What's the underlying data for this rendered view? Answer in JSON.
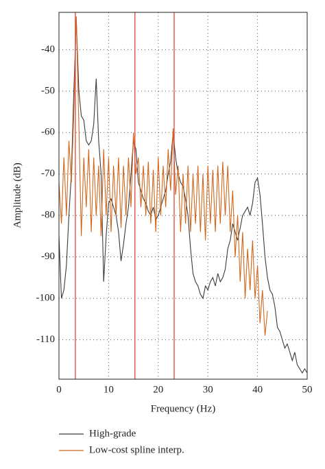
{
  "chart_data": {
    "type": "line",
    "xlabel": "Frequency (Hz)",
    "ylabel": "Amplitude (dB)",
    "xlim": [
      0,
      50
    ],
    "ylim": [
      -119.5,
      -31
    ],
    "xticks": [
      0,
      10,
      20,
      30,
      40,
      50
    ],
    "yticks": [
      -40,
      -50,
      -60,
      -70,
      -80,
      -90,
      -100,
      -110
    ],
    "grid": true,
    "vlines": [
      3.3,
      15.3,
      23.2
    ],
    "vline_color": "#e0443a",
    "legend": "bottom",
    "series": [
      {
        "name": "High-grade",
        "color": "#3a3a3a",
        "x": [
          0,
          0.5,
          1,
          1.5,
          2,
          2.5,
          3,
          3.5,
          4,
          4.5,
          5,
          5.5,
          6,
          6.5,
          7,
          7.5,
          8,
          8.5,
          9,
          9.5,
          10,
          10.5,
          11,
          11.5,
          12,
          12.5,
          13,
          13.5,
          14,
          14.5,
          15,
          15.5,
          16,
          16.5,
          17,
          17.5,
          18,
          18.5,
          19,
          19.5,
          20,
          20.5,
          21,
          21.5,
          22,
          22.5,
          23,
          23.5,
          24,
          24.5,
          25,
          25.5,
          26,
          26.5,
          27,
          27.5,
          28,
          28.5,
          29,
          29.5,
          30,
          30.5,
          31,
          31.5,
          32,
          32.5,
          33,
          33.5,
          34,
          34.5,
          35,
          35.5,
          36,
          36.5,
          37,
          37.5,
          38,
          38.5,
          39,
          39.5,
          40,
          40.5,
          41,
          41.5,
          42,
          42.5,
          43,
          43.5,
          44,
          44.5,
          45,
          45.5,
          46,
          46.5,
          47,
          47.5,
          48,
          48.5,
          49,
          49.5,
          50
        ],
        "values": [
          -85,
          -100,
          -98,
          -92,
          -80,
          -70,
          -50,
          -33,
          -50,
          -56,
          -57,
          -62,
          -63,
          -62,
          -58,
          -47,
          -62,
          -70,
          -96,
          -85,
          -77,
          -76,
          -78,
          -80,
          -84,
          -91,
          -87,
          -82,
          -78,
          -70,
          -62,
          -64,
          -72,
          -74,
          -76,
          -77,
          -79,
          -80,
          -78,
          -81,
          -80,
          -78,
          -76,
          -74,
          -70,
          -67,
          -60,
          -66,
          -70,
          -72,
          -73,
          -76,
          -80,
          -88,
          -94,
          -96,
          -97,
          -99,
          -100,
          -97,
          -98,
          -96,
          -95,
          -97,
          -94,
          -96,
          -95,
          -93,
          -88,
          -86,
          -82,
          -84,
          -86,
          -83,
          -80,
          -79,
          -78,
          -80,
          -77,
          -72,
          -71,
          -75,
          -82,
          -90,
          -95,
          -98,
          -99,
          -102,
          -107,
          -108,
          -110,
          -112,
          -111,
          -113,
          -115,
          -113,
          -116,
          -117,
          -118,
          -117,
          -118
        ]
      },
      {
        "name": "Low-cost spline interp.",
        "color": "#d0661c",
        "x": [
          0,
          0.5,
          1,
          1.5,
          2,
          2.5,
          3,
          3.5,
          4,
          4.5,
          5,
          5.5,
          6,
          6.5,
          7,
          7.5,
          8,
          8.5,
          9,
          9.5,
          10,
          10.5,
          11,
          11.5,
          12,
          12.5,
          13,
          13.5,
          14,
          14.5,
          15,
          15.5,
          16,
          16.5,
          17,
          17.5,
          18,
          18.5,
          19,
          19.5,
          20,
          20.5,
          21,
          21.5,
          22,
          22.5,
          23,
          23.5,
          24,
          24.5,
          25,
          25.5,
          26,
          26.5,
          27,
          27.5,
          28,
          28.5,
          29,
          29.5,
          30,
          30.5,
          31,
          31.5,
          32,
          32.5,
          33,
          33.5,
          34,
          34.5,
          35,
          35.5,
          36,
          36.5,
          37,
          37.5,
          38,
          38.5,
          39,
          39.5,
          40,
          40.5,
          41,
          41.5,
          42
        ],
        "values": [
          -72,
          -82,
          -66,
          -80,
          -62,
          -72,
          -55,
          -32,
          -58,
          -85,
          -66,
          -78,
          -64,
          -84,
          -66,
          -80,
          -68,
          -85,
          -64,
          -80,
          -66,
          -84,
          -68,
          -80,
          -66,
          -83,
          -68,
          -80,
          -66,
          -78,
          -60,
          -70,
          -66,
          -78,
          -68,
          -80,
          -67,
          -82,
          -69,
          -84,
          -66,
          -80,
          -68,
          -78,
          -64,
          -74,
          -59,
          -75,
          -68,
          -84,
          -70,
          -82,
          -68,
          -84,
          -70,
          -82,
          -68,
          -84,
          -70,
          -86,
          -68,
          -82,
          -69,
          -84,
          -68,
          -82,
          -67,
          -80,
          -68,
          -84,
          -74,
          -90,
          -80,
          -96,
          -84,
          -100,
          -88,
          -98,
          -86,
          -100,
          -92,
          -106,
          -98,
          -109,
          -103
        ]
      }
    ]
  }
}
